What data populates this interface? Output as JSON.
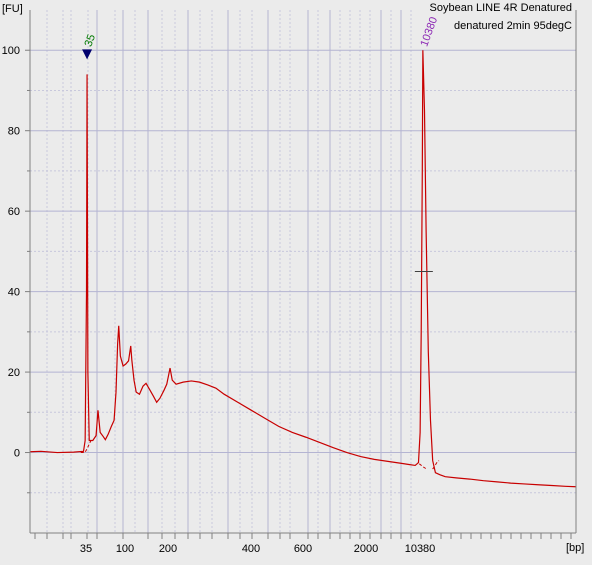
{
  "chart_data": {
    "type": "line",
    "title_lines": [
      "Soybean LINE 4R Denatured",
      "denatured 2min 95degC"
    ],
    "ylabel": "[FU]",
    "xlabel": "[bp]",
    "ylim": [
      -20,
      110
    ],
    "yticks": [
      0,
      20,
      40,
      60,
      80,
      100
    ],
    "xtick_labels": [
      "35",
      "100",
      "200",
      "400",
      "600",
      "2000",
      "10380"
    ],
    "grid": true,
    "colors": {
      "trace": "#c80000",
      "background": "#ebebeb",
      "grid_major": "#b4b4d2",
      "grid_minor": "#c8c8dc",
      "axis": "#808080",
      "tick_label": "#000000",
      "marker_35": "#00006e",
      "peak_label_35": "#007800",
      "peak_label_10380": "#8c28b4"
    },
    "peak_labels": [
      {
        "text": "35",
        "x_pos": 0.1045,
        "y": 94
      },
      {
        "text": "10380",
        "x_pos": 0.7195,
        "y": 100
      }
    ],
    "series": [
      {
        "points": [
          [
            0,
            0.2
          ],
          [
            0.02,
            0.3
          ],
          [
            0.05,
            0
          ],
          [
            0.08,
            0.1
          ],
          [
            0.098,
            0.3
          ],
          [
            0.101,
            3
          ],
          [
            0.1035,
            40
          ],
          [
            0.1045,
            94
          ],
          [
            0.106,
            20
          ],
          [
            0.1085,
            3
          ],
          [
            0.115,
            3
          ],
          [
            0.121,
            4.2
          ],
          [
            0.1245,
            10.5
          ],
          [
            0.1285,
            5
          ],
          [
            0.134,
            4
          ],
          [
            0.138,
            3.2
          ],
          [
            0.143,
            4.5
          ],
          [
            0.149,
            6.5
          ],
          [
            0.154,
            8
          ],
          [
            0.1575,
            15
          ],
          [
            0.1605,
            27
          ],
          [
            0.1625,
            31.5
          ],
          [
            0.1655,
            24
          ],
          [
            0.1705,
            21.5
          ],
          [
            0.1755,
            22
          ],
          [
            0.1805,
            22.8
          ],
          [
            0.1845,
            26.5
          ],
          [
            0.1865,
            23
          ],
          [
            0.1905,
            18
          ],
          [
            0.1945,
            15
          ],
          [
            0.2005,
            14.5
          ],
          [
            0.207,
            16.5
          ],
          [
            0.2125,
            17.2
          ],
          [
            0.2185,
            15.8
          ],
          [
            0.226,
            14
          ],
          [
            0.232,
            12.5
          ],
          [
            0.238,
            13.5
          ],
          [
            0.2455,
            15.5
          ],
          [
            0.2505,
            17
          ],
          [
            0.2535,
            19
          ],
          [
            0.2565,
            21
          ],
          [
            0.2605,
            18
          ],
          [
            0.2675,
            17
          ],
          [
            0.2805,
            17.5
          ],
          [
            0.2955,
            17.8
          ],
          [
            0.3105,
            17.5
          ],
          [
            0.3255,
            16.8
          ],
          [
            0.3405,
            16
          ],
          [
            0.3555,
            14.5
          ],
          [
            0.3805,
            12.5
          ],
          [
            0.4055,
            10.5
          ],
          [
            0.4305,
            8.5
          ],
          [
            0.4555,
            6.5
          ],
          [
            0.4805,
            5
          ],
          [
            0.5055,
            3.8
          ],
          [
            0.5305,
            2.5
          ],
          [
            0.5555,
            1.2
          ],
          [
            0.5805,
            0
          ],
          [
            0.6055,
            -1
          ],
          [
            0.6305,
            -1.7
          ],
          [
            0.6555,
            -2.2
          ],
          [
            0.6805,
            -2.7
          ],
          [
            0.6955,
            -3
          ],
          [
            0.7055,
            -3.2
          ],
          [
            0.7115,
            -2.5
          ],
          [
            0.7145,
            5
          ],
          [
            0.7165,
            30
          ],
          [
            0.7185,
            70
          ],
          [
            0.7195,
            100
          ],
          [
            0.7225,
            85
          ],
          [
            0.7255,
            55
          ],
          [
            0.7295,
            25
          ],
          [
            0.7335,
            8
          ],
          [
            0.7375,
            -2
          ],
          [
            0.7425,
            -5
          ],
          [
            0.7505,
            -5.5
          ],
          [
            0.7605,
            -6
          ],
          [
            0.7805,
            -6.3
          ],
          [
            0.8055,
            -6.6
          ],
          [
            0.8305,
            -7
          ],
          [
            0.8555,
            -7.3
          ],
          [
            0.8805,
            -7.6
          ],
          [
            0.9055,
            -7.8
          ],
          [
            0.9305,
            -8
          ],
          [
            0.9555,
            -8.2
          ],
          [
            0.9805,
            -8.4
          ],
          [
            1.0,
            -8.5
          ]
        ]
      }
    ],
    "baselines": [
      {
        "points": [
          [
            0.093,
            0
          ],
          [
            0.1005,
            0
          ],
          [
            0.104,
            0.8
          ],
          [
            0.112,
            3.1
          ]
        ]
      },
      {
        "points": [
          [
            0.713,
            -2.8
          ],
          [
            0.7205,
            -3.6
          ],
          [
            0.7275,
            -4.2
          ]
        ]
      },
      {
        "points": [
          [
            0.7375,
            -4.1
          ],
          [
            0.742,
            -3.2
          ],
          [
            0.7445,
            -2.6
          ],
          [
            0.749,
            -2
          ]
        ]
      }
    ],
    "half_height_marker": {
      "x_pos": 0.7195,
      "y": 45
    }
  }
}
